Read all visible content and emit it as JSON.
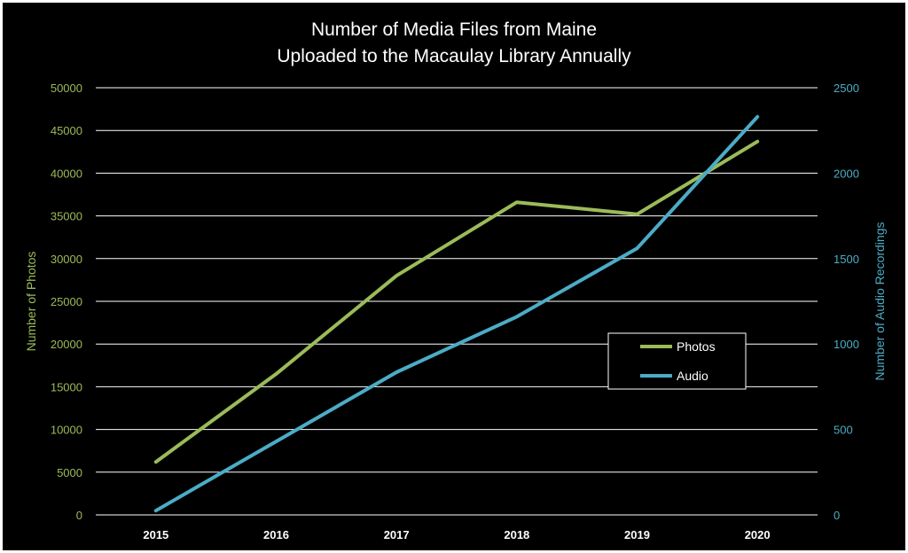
{
  "chart_data": {
    "type": "line",
    "title_lines": [
      "Number of Media Files from Maine",
      "Uploaded to the Macaulay Library Annually"
    ],
    "categories": [
      "2015",
      "2016",
      "2017",
      "2018",
      "2019",
      "2020"
    ],
    "series": [
      {
        "name": "Photos",
        "axis": "left",
        "color": "#9bbb59",
        "values": [
          6200,
          16500,
          28000,
          36600,
          35200,
          43700
        ]
      },
      {
        "name": "Audio",
        "axis": "right",
        "color": "#4bacc6",
        "values": [
          25,
          430,
          835,
          1160,
          1560,
          2330
        ]
      }
    ],
    "y_left": {
      "label": "Number of Photos",
      "range": [
        0,
        50000
      ],
      "ticks": [
        "0",
        "5000",
        "10000",
        "15000",
        "20000",
        "25000",
        "30000",
        "35000",
        "40000",
        "45000",
        "50000"
      ]
    },
    "y_right": {
      "label": "Number of Audio Recordings",
      "range": [
        0,
        2500
      ],
      "ticks": [
        "0",
        "500",
        "1000",
        "1500",
        "2000",
        "2500"
      ]
    },
    "grid": true,
    "legend_position": "right-middle"
  }
}
